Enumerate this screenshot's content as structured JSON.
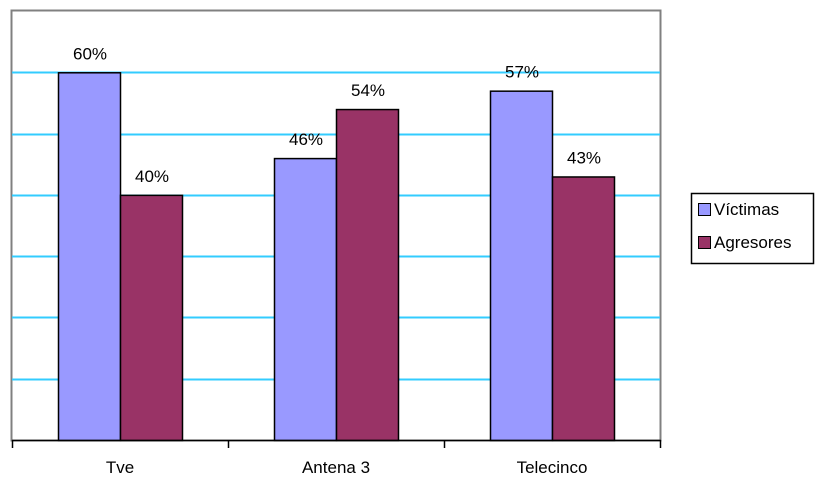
{
  "chart_data": {
    "type": "bar",
    "categories": [
      "Tve",
      "Antena 3",
      "Telecinco"
    ],
    "series": [
      {
        "name": "Víctimas",
        "values": [
          60,
          46,
          57
        ],
        "labels": [
          "60%",
          "46%",
          "57%"
        ]
      },
      {
        "name": "Agresores",
        "values": [
          40,
          54,
          43
        ],
        "labels": [
          "40%",
          "54%",
          "43%"
        ]
      }
    ],
    "ylim": [
      0,
      70
    ],
    "gridline_step": 10,
    "grid": true,
    "legend_position": "right",
    "title": "",
    "xlabel": "",
    "ylabel": ""
  },
  "colors": {
    "series": [
      "#9999ff",
      "#993366"
    ],
    "grid": "#33ccff",
    "plot_border": "#808080",
    "axis": "#000000",
    "text": "#000000"
  }
}
